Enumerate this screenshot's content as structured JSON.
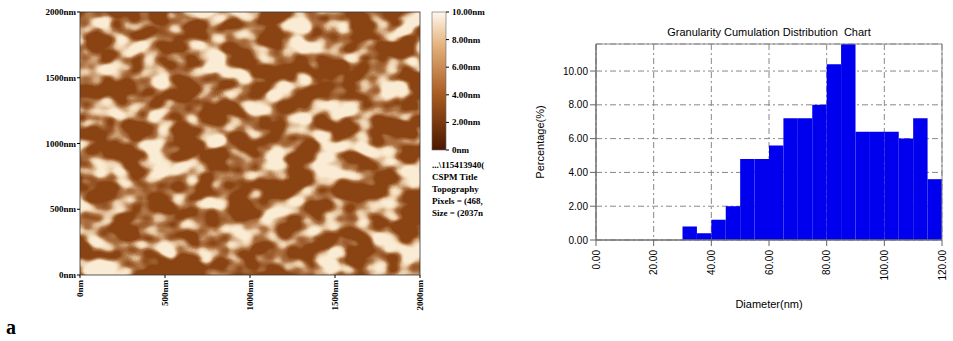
{
  "chart_data": {
    "type": "histogram",
    "title": "Granularity Cumulation Distribution  Chart",
    "x_label": "Diameter(nm)",
    "y_label": "Percentage(%)",
    "bins": [
      30,
      35,
      40,
      45,
      50,
      55,
      60,
      65,
      70,
      75,
      80,
      85,
      90,
      95,
      100,
      105,
      110,
      115,
      120
    ],
    "values": [
      0.8,
      0.4,
      1.2,
      2.0,
      4.8,
      4.8,
      5.6,
      7.2,
      7.2,
      8.0,
      10.4,
      11.6,
      6.4,
      6.4,
      6.4,
      6.0,
      7.2,
      3.6
    ],
    "color": "#0000ee",
    "xlim": [
      0,
      120
    ],
    "xticks": [
      {
        "value": 0,
        "label": "0.00"
      },
      {
        "value": 20,
        "label": "20.00"
      },
      {
        "value": 40,
        "label": "40.00"
      },
      {
        "value": 60,
        "label": "60.00"
      },
      {
        "value": 80,
        "label": "80.00"
      },
      {
        "value": 100,
        "label": "100.00"
      },
      {
        "value": 120,
        "label": "120.00"
      }
    ],
    "ylim": [
      0,
      11.6
    ],
    "yticks": [
      {
        "value": 0,
        "label": "0.00"
      },
      {
        "value": 2,
        "label": "2.00"
      },
      {
        "value": 4,
        "label": "4.00"
      },
      {
        "value": 6,
        "label": "6.00"
      },
      {
        "value": 8,
        "label": "8.00"
      },
      {
        "value": 10,
        "label": "10.00"
      }
    ],
    "grid": true
  },
  "image": {
    "type": "topography",
    "xlim": [
      0,
      2000
    ],
    "ylim": [
      0,
      2000
    ],
    "xticks": [
      {
        "value": 0,
        "label": "0nm"
      },
      {
        "value": 500,
        "label": "500nm"
      },
      {
        "value": 1000,
        "label": "1000nm"
      },
      {
        "value": 1500,
        "label": "1500nm"
      },
      {
        "value": 2000,
        "label": "2000nm"
      }
    ],
    "yticks": [
      {
        "value": 0,
        "label": "0nm"
      },
      {
        "value": 500,
        "label": "500nm"
      },
      {
        "value": 1000,
        "label": "1000nm"
      },
      {
        "value": 1500,
        "label": "1500nm"
      },
      {
        "value": 2000,
        "label": "2000nm"
      }
    ],
    "colorbar_range": [
      0,
      10
    ],
    "colorbar_ticks": [
      {
        "value": 0,
        "label": "0nm"
      },
      {
        "value": 2,
        "label": "2.00nm"
      },
      {
        "value": 4,
        "label": "4.00nm"
      },
      {
        "value": 6,
        "label": "6.00nm"
      },
      {
        "value": 8,
        "label": "8.00nm"
      },
      {
        "value": 10,
        "label": "10.00nm"
      }
    ],
    "info": [
      "...\\115413940(",
      "CSPM Title",
      "Topography",
      "Pixels = (468,",
      "Size = (2037n"
    ]
  },
  "panel_label": "a"
}
